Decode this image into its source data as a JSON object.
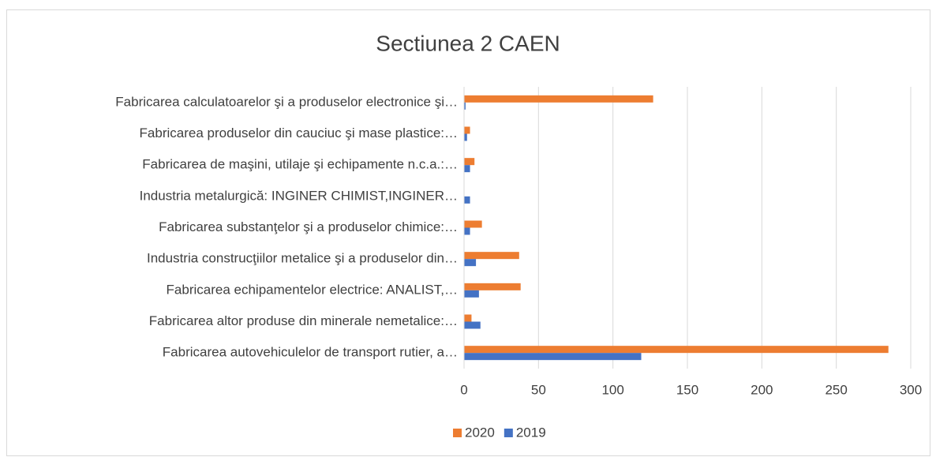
{
  "chart_data": {
    "type": "bar",
    "orientation": "horizontal",
    "title": "Sectiunea 2 CAEN",
    "categories": [
      "Fabricarea calculatoarelor şi a produselor electronice şi…",
      "Fabricarea produselor din cauciuc şi mase plastice:…",
      "Fabricarea de maşini, utilaje şi echipamente n.c.a.:…",
      "Industria metalurgică: INGINER CHIMIST,INGINER…",
      "Fabricarea substanţelor şi a produselor chimice:…",
      "Industria construcţiilor metalice şi a produselor din…",
      "Fabricarea echipamentelor electrice: ANALIST,…",
      "Fabricarea altor produse din minerale nemetalice:…",
      "Fabricarea autovehiculelor de transport rutier, a…"
    ],
    "series": [
      {
        "name": "2020",
        "color": "#ed7d31",
        "values": [
          127,
          4,
          7,
          0,
          12,
          37,
          38,
          5,
          285
        ]
      },
      {
        "name": "2019",
        "color": "#4472c4",
        "values": [
          1,
          2,
          4,
          4,
          4,
          8,
          10,
          11,
          119
        ]
      }
    ],
    "xlim": [
      0,
      300
    ],
    "xticks": [
      0,
      50,
      100,
      150,
      200,
      250,
      300
    ],
    "grid": true,
    "legend": "bottom"
  }
}
